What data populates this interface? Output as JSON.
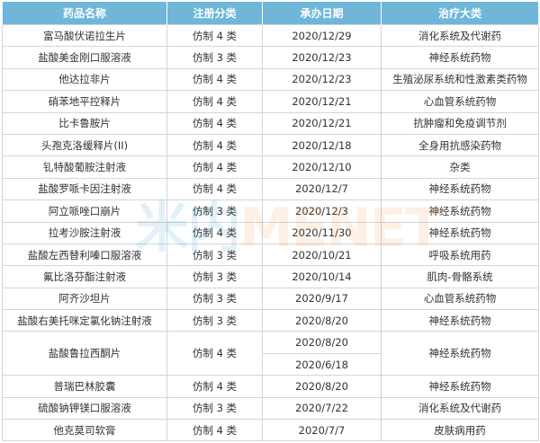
{
  "headers": [
    "药品名称",
    "注册分类",
    "承办日期",
    "治疗大类"
  ],
  "rows": [
    [
      "富马酸伏诺拉生片",
      "仿制 4 类",
      "2020/12/29",
      "消化系统及代谢药"
    ],
    [
      "盐酸美金刚口服溶液",
      "仿制 3 类",
      "2020/12/23",
      "神经系统药物"
    ],
    [
      "他达拉非片",
      "仿制 4 类",
      "2020/12/23",
      "生殖泌尿系统和性激素类药物"
    ],
    [
      "硝苯地平控释片",
      "仿制 4 类",
      "2020/12/21",
      "心血管系统药物"
    ],
    [
      "比卡鲁胺片",
      "仿制 4 类",
      "2020/12/21",
      "抗肿瘤和免疫调节剂"
    ],
    [
      "头孢克洛缓释片(II)",
      "仿制 4 类",
      "2020/12/18",
      "全身用抗感染药物"
    ],
    [
      "钆特酸葡胺注射液",
      "仿制 4 类",
      "2020/12/10",
      "杂类"
    ],
    [
      "盐酸罗哌卡因注射液",
      "仿制 4 类",
      "2020/12/7",
      "神经系统药物"
    ],
    [
      "阿立哌唑口崩片",
      "仿制 3 类",
      "2020/12/3",
      "神经系统药物"
    ],
    [
      "拉考沙胺注射液",
      "仿制 4 类",
      "2020/11/30",
      "神经系统药物"
    ],
    [
      "盐酸左西替利嗪口服溶液",
      "仿制 3 类",
      "2020/10/21",
      "呼吸系统用药"
    ],
    [
      "氟比洛芬酯注射液",
      "仿制 3 类",
      "2020/10/14",
      "肌肉-骨骼系统"
    ],
    [
      "阿齐沙坦片",
      "仿制 3 类",
      "2020/9/17",
      "心血管系统药物"
    ],
    [
      "盐酸右美托咪定氯化钠注射液",
      "仿制 3 类",
      "2020/8/20",
      "神经系统药物"
    ]
  ],
  "merged_row": {
    "name": "盐酸鲁拉西酮片",
    "class": "仿制 4 类",
    "dates": [
      "2020/8/20",
      "2020/6/18"
    ],
    "category": "神经系统药物"
  },
  "rows_after": [
    [
      "普瑞巴林胶囊",
      "仿制 4 类",
      "2020/8/20",
      "神经系统药物"
    ],
    [
      "硫酸钠钾镁口服溶液",
      "仿制 3 类",
      "2020/7/22",
      "消化系统及代谢药"
    ],
    [
      "他克莫司软膏",
      "仿制 4 类",
      "2020/7/7",
      "皮肤病用药"
    ]
  ],
  "watermark": {
    "part1": "米内",
    "part2": "MENET"
  },
  "colors": {
    "header_bg": "#6fb6d9",
    "border": "#cfd6da"
  }
}
